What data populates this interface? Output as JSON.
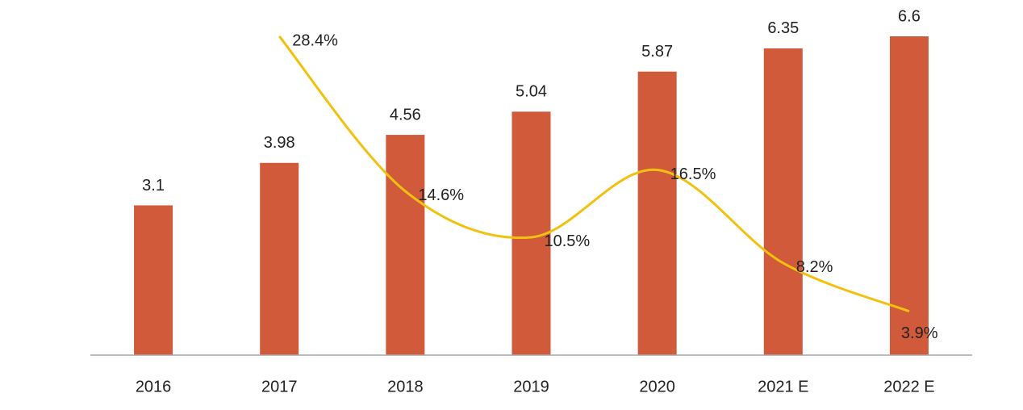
{
  "chart_data": {
    "type": "bar",
    "categories": [
      "2016",
      "2017",
      "2018",
      "2019",
      "2020",
      "2021 E",
      "2022 E"
    ],
    "series": [
      {
        "type": "bar",
        "color": "#d05a3a",
        "values": [
          3.1,
          3.98,
          4.56,
          5.04,
          5.87,
          6.35,
          6.6
        ]
      },
      {
        "type": "line",
        "axis": "y2",
        "color": "#f2c10f",
        "smooth": true,
        "values": [
          null,
          28.4,
          14.6,
          10.5,
          16.5,
          8.2,
          3.9
        ],
        "value_labels": [
          null,
          "28.4%",
          "14.6%",
          "10.5%",
          "16.5%",
          "8.2%",
          "3.9%"
        ]
      }
    ],
    "ylim": [
      0,
      6.6
    ],
    "y2lim": [
      0,
      28.4
    ]
  }
}
